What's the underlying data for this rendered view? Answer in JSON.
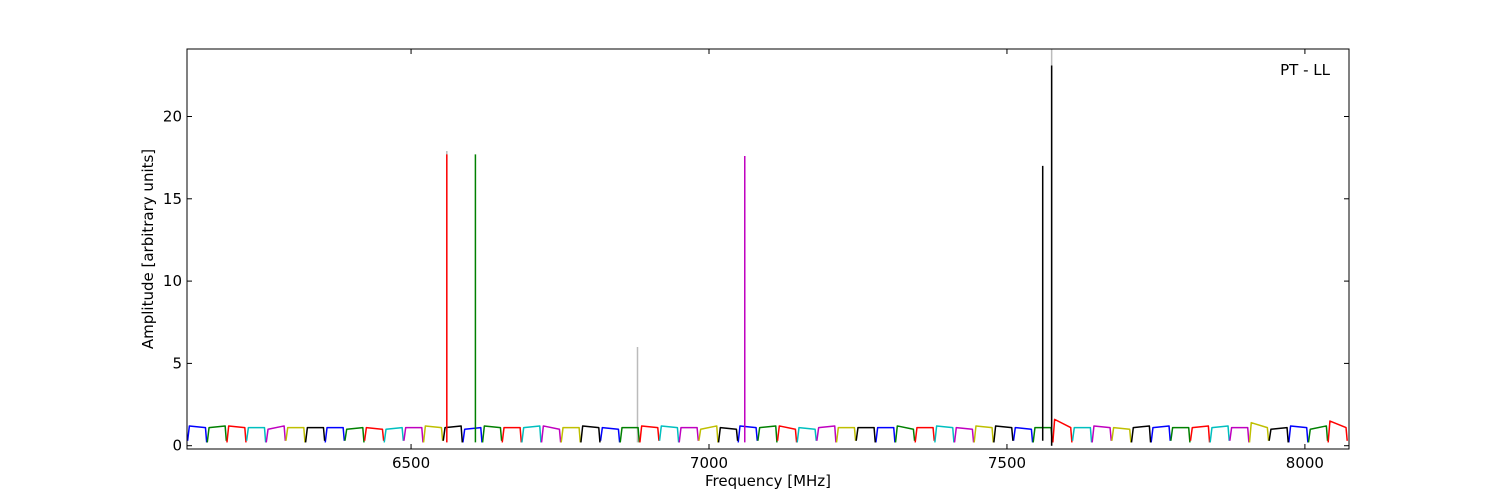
{
  "chart_data": {
    "type": "line",
    "xlabel": "Frequency [MHz]",
    "ylabel": "Amplitude [arbitrary units]",
    "annotation": "PT - LL",
    "xlim": [
      6124,
      8074
    ],
    "ylim": [
      -0.2,
      24.1
    ],
    "xticks": [
      6500,
      7000,
      7500,
      8000
    ],
    "yticks": [
      0,
      5,
      10,
      15,
      20
    ],
    "series": [
      {
        "color": "#bbbbbb",
        "x": [
          6560,
          6560,
          6560,
          6880,
          6880,
          6880,
          7575,
          7575
        ],
        "values": [
          0.2,
          17.9,
          null,
          0.2,
          6.0,
          null,
          0.0,
          24.1
        ]
      },
      {
        "color": "#0000ff",
        "x": [
          6125,
          6128,
          6155,
          6157,
          6157.5,
          6356,
          6359,
          6386,
          6388,
          6388.5,
          6587,
          6590,
          6617,
          6619,
          6619.5,
          6818,
          6821,
          6848,
          6850,
          6850.5,
          7049,
          7052,
          7079,
          7081,
          7081.5,
          7280,
          7283,
          7310,
          7312,
          7312.5,
          7511,
          7514,
          7541,
          7543,
          7543.5,
          7742,
          7745,
          7772,
          7774,
          7774.5,
          7973,
          7976,
          8003,
          8005,
          8005.5
        ],
        "values": [
          0.3,
          1.2,
          1.1,
          0.2,
          null,
          0.2,
          1.1,
          1.1,
          0.3,
          null,
          0.2,
          1.0,
          1.1,
          0.2,
          null,
          0.3,
          1.1,
          1.0,
          0.2,
          null,
          0.2,
          1.2,
          1.1,
          0.3,
          null,
          0.2,
          1.1,
          1.1,
          0.2,
          null,
          0.3,
          1.1,
          1.0,
          0.2,
          null,
          0.2,
          1.1,
          1.2,
          0.3,
          null,
          0.2,
          1.2,
          1.1,
          0.2,
          null
        ]
      },
      {
        "color": "#008000",
        "x": [
          6158,
          6161,
          6188,
          6190,
          6190.5,
          6389,
          6392,
          6419,
          6421,
          6421.5,
          6620,
          6623,
          6650,
          6652,
          6652.5,
          6851,
          6854,
          6881,
          6883,
          6883.5,
          7082,
          7085,
          7112,
          7114,
          7114.5,
          7313,
          7316,
          7343,
          7345,
          7345.5,
          7544,
          7547,
          7574,
          7576,
          7576.5,
          7775,
          7778,
          7805,
          7807,
          7807.5,
          8006,
          8009,
          8036,
          8038,
          8038.5
        ],
        "values": [
          0.2,
          1.1,
          1.2,
          0.3,
          null,
          0.3,
          1.0,
          1.1,
          0.2,
          null,
          0.2,
          1.2,
          1.1,
          0.3,
          null,
          0.2,
          1.1,
          1.1,
          0.2,
          null,
          0.3,
          1.1,
          1.2,
          0.2,
          null,
          0.2,
          1.2,
          1.0,
          0.3,
          null,
          0.2,
          1.1,
          1.1,
          0.2,
          null,
          0.3,
          1.1,
          1.1,
          0.2,
          null,
          0.2,
          1.0,
          1.2,
          0.3,
          null
        ]
      },
      {
        "color": "#ff0000",
        "x": [
          6191,
          6194,
          6221,
          6223,
          6223.5,
          6422,
          6425,
          6452,
          6454,
          6454.5,
          6653,
          6656,
          6683,
          6685,
          6685.5,
          6884,
          6887,
          6914,
          6916,
          6916.5,
          7115,
          7118,
          7145,
          7147,
          7147.5,
          7346,
          7349,
          7376,
          7378,
          7378.5,
          7577,
          7580,
          7607,
          7609,
          7609.5,
          7808,
          7811,
          7838,
          7840,
          7840.5,
          8039,
          8042,
          8069,
          8071,
          8071.5
        ],
        "values": [
          0.2,
          1.2,
          1.1,
          0.2,
          null,
          0.3,
          1.1,
          1.0,
          0.3,
          null,
          0.2,
          1.1,
          1.1,
          0.2,
          null,
          0.2,
          1.2,
          1.1,
          0.3,
          null,
          0.3,
          1.2,
          1.0,
          0.2,
          null,
          0.2,
          1.1,
          1.1,
          0.3,
          null,
          0.2,
          1.6,
          1.1,
          0.2,
          null,
          0.3,
          1.1,
          1.2,
          0.2,
          null,
          0.2,
          1.5,
          1.1,
          0.3,
          null
        ]
      },
      {
        "color": "#00bfbf",
        "x": [
          6224,
          6227,
          6254,
          6256,
          6256.5,
          6455,
          6458,
          6485,
          6487,
          6487.5,
          6686,
          6689,
          6716,
          6718,
          6718.5,
          6917,
          6920,
          6947,
          6949,
          6949.5,
          7148,
          7151,
          7178,
          7180,
          7180.5,
          7379,
          7382,
          7409,
          7411,
          7411.5,
          7610,
          7613,
          7640,
          7642,
          7642.5,
          7841,
          7844,
          7871,
          7873,
          7873.5
        ],
        "values": [
          0.3,
          1.1,
          1.1,
          0.2,
          null,
          0.2,
          1.0,
          1.1,
          0.3,
          null,
          0.2,
          1.1,
          1.2,
          0.2,
          null,
          0.3,
          1.2,
          1.1,
          0.2,
          null,
          0.2,
          1.1,
          1.0,
          0.3,
          null,
          0.2,
          1.2,
          1.1,
          0.2,
          null,
          0.3,
          1.1,
          1.1,
          0.2,
          null,
          0.2,
          1.1,
          1.2,
          0.3,
          null
        ]
      },
      {
        "color": "#bf00bf",
        "x": [
          6257,
          6260,
          6287,
          6289,
          6289.5,
          6488,
          6491,
          6518,
          6520,
          6520.5,
          6719,
          6722,
          6749,
          6751,
          6751.5,
          6950,
          6953,
          6980,
          6982,
          6982.5,
          7181,
          7184,
          7211,
          7213,
          7213.5,
          7412,
          7415,
          7442,
          7444,
          7444.5,
          7643,
          7646,
          7673,
          7675,
          7675.5,
          7874,
          7877,
          7904,
          7906,
          7906.5
        ],
        "values": [
          0.2,
          1.0,
          1.2,
          0.3,
          null,
          0.3,
          1.1,
          1.1,
          0.2,
          null,
          0.2,
          1.2,
          1.0,
          0.2,
          null,
          0.2,
          1.1,
          1.1,
          0.3,
          null,
          0.3,
          1.1,
          1.2,
          0.2,
          null,
          0.2,
          1.1,
          1.0,
          0.2,
          null,
          0.2,
          1.2,
          1.1,
          0.3,
          null,
          0.3,
          1.1,
          1.1,
          0.2,
          null
        ]
      },
      {
        "color": "#bfbf00",
        "x": [
          6290,
          6293,
          6320,
          6322,
          6322.5,
          6521,
          6524,
          6551,
          6553,
          6553.5,
          6752,
          6755,
          6782,
          6784,
          6784.5,
          6983,
          6986,
          7013,
          7015,
          7015.5,
          7214,
          7217,
          7244,
          7246,
          7246.5,
          7445,
          7448,
          7475,
          7477,
          7477.5,
          7676,
          7679,
          7706,
          7708,
          7708.5,
          7907,
          7910,
          7937,
          7939,
          7939.5
        ],
        "values": [
          0.3,
          1.1,
          1.1,
          0.2,
          null,
          0.2,
          1.2,
          1.1,
          0.3,
          null,
          0.2,
          1.1,
          1.1,
          0.2,
          null,
          0.3,
          1.0,
          1.2,
          0.2,
          null,
          0.2,
          1.1,
          1.1,
          0.3,
          null,
          0.2,
          1.2,
          1.1,
          0.2,
          null,
          0.3,
          1.1,
          1.0,
          0.2,
          null,
          0.2,
          1.4,
          1.1,
          0.3,
          null
        ]
      },
      {
        "color": "#000000",
        "x": [
          6323,
          6326,
          6353,
          6355,
          6355.5,
          6554,
          6557,
          6584,
          6586,
          6586.5,
          6785,
          6788,
          6815,
          6817,
          6817.5,
          7016,
          7019,
          7046,
          7048,
          7048.5,
          7247,
          7250,
          7277,
          7279,
          7279.5,
          7478,
          7481,
          7508,
          7510,
          7510.5,
          7709,
          7712,
          7739,
          7741,
          7741.5,
          7940,
          7943,
          7970,
          7972,
          7972.5
        ],
        "values": [
          0.2,
          1.1,
          1.1,
          0.3,
          null,
          0.3,
          1.1,
          1.2,
          0.2,
          null,
          0.2,
          1.2,
          1.1,
          0.2,
          null,
          0.2,
          1.1,
          1.0,
          0.3,
          null,
          0.3,
          1.1,
          1.1,
          0.2,
          null,
          0.2,
          1.2,
          1.1,
          0.3,
          null,
          0.2,
          1.1,
          1.2,
          0.2,
          null,
          0.3,
          1.0,
          1.1,
          0.2,
          null
        ]
      },
      {
        "color": "#ff0000",
        "x": [
          6560,
          6560
        ],
        "values": [
          0.2,
          17.7
        ]
      },
      {
        "color": "#008000",
        "x": [
          6608,
          6608
        ],
        "values": [
          0.2,
          17.7
        ]
      },
      {
        "color": "#bf00bf",
        "x": [
          7060,
          7060
        ],
        "values": [
          0.2,
          17.6
        ]
      },
      {
        "color": "#000000",
        "x": [
          7560,
          7560,
          7560,
          7575,
          7575
        ],
        "values": [
          0.3,
          17.0,
          null,
          0.0,
          23.1
        ]
      }
    ]
  }
}
